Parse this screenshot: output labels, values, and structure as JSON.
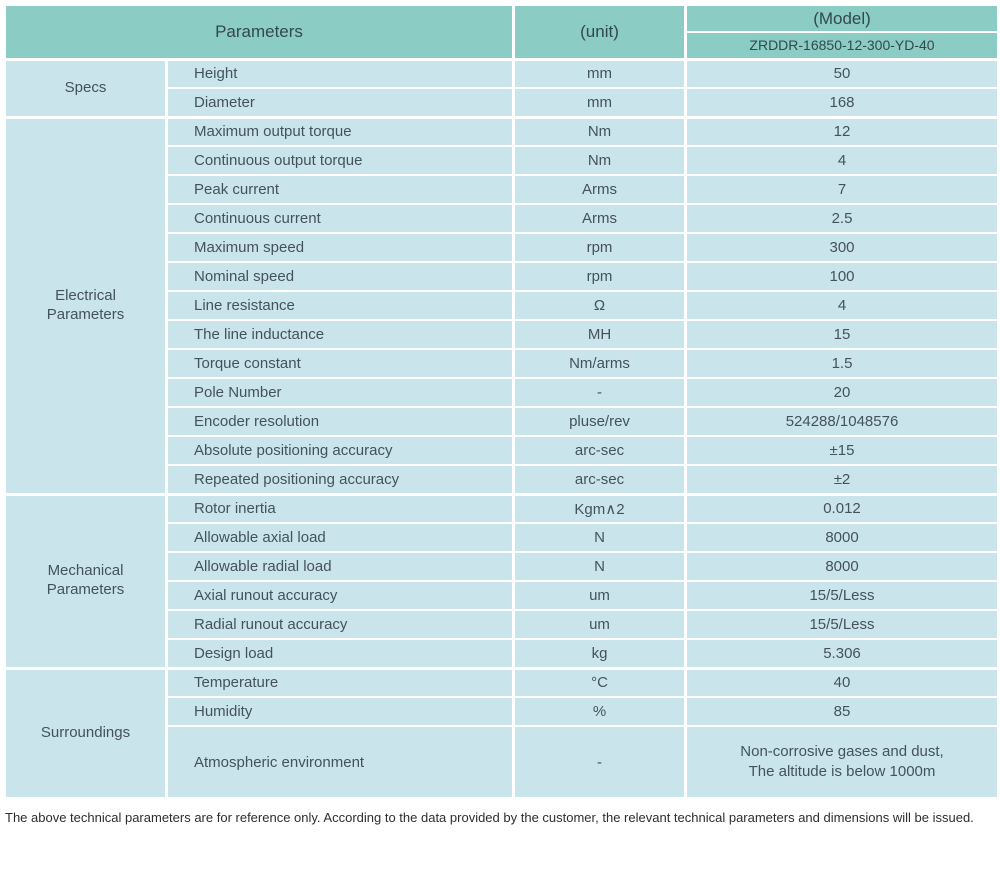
{
  "colors": {
    "header_bg": "#8bccc5",
    "body_bg": "#c9e5eb",
    "grid": "#ffffff",
    "header_text": "#33494b",
    "body_text": "#44525a",
    "note_text": "#2e2e2e"
  },
  "header": {
    "parameters_label": "Parameters",
    "unit_label": "(unit)",
    "model_label": "(Model)",
    "model_value": "ZRDDR-16850-12-300-YD-40"
  },
  "sections": [
    {
      "category": "Specs",
      "rows": [
        {
          "param": "Height",
          "unit": "mm",
          "value": "50"
        },
        {
          "param": "Diameter",
          "unit": "mm",
          "value": "168"
        }
      ]
    },
    {
      "category": "Electrical\nParameters",
      "rows": [
        {
          "param": "Maximum output torque",
          "unit": "Nm",
          "value": "12"
        },
        {
          "param": "Continuous output torque",
          "unit": "Nm",
          "value": "4"
        },
        {
          "param": "Peak current",
          "unit": "Arms",
          "value": "7"
        },
        {
          "param": "Continuous current",
          "unit": "Arms",
          "value": "2.5"
        },
        {
          "param": "Maximum speed",
          "unit": "rpm",
          "value": "300"
        },
        {
          "param": "Nominal speed",
          "unit": "rpm",
          "value": "100"
        },
        {
          "param": "Line resistance",
          "unit": "Ω",
          "value": "4"
        },
        {
          "param": "The line inductance",
          "unit": "MH",
          "value": "15"
        },
        {
          "param": "Torque constant",
          "unit": "Nm/arms",
          "value": "1.5"
        },
        {
          "param": "Pole Number",
          "unit": "-",
          "value": "20"
        },
        {
          "param": "Encoder resolution",
          "unit": "pluse/rev",
          "value": "524288/1048576"
        },
        {
          "param": "Absolute positioning accuracy",
          "unit": "arc-sec",
          "value": "±15"
        },
        {
          "param": "Repeated positioning accuracy",
          "unit": "arc-sec",
          "value": "±2"
        }
      ]
    },
    {
      "category": "Mechanical\nParameters",
      "rows": [
        {
          "param": "Rotor inertia",
          "unit": "Kgm∧2",
          "value": "0.012"
        },
        {
          "param": "Allowable axial load",
          "unit": "N",
          "value": "8000"
        },
        {
          "param": "Allowable radial load",
          "unit": "N",
          "value": "8000"
        },
        {
          "param": "Axial runout accuracy",
          "unit": "um",
          "value": "15/5/Less"
        },
        {
          "param": "Radial runout accuracy",
          "unit": "um",
          "value": "15/5/Less"
        },
        {
          "param": "Design load",
          "unit": "kg",
          "value": "5.306"
        }
      ]
    },
    {
      "category": "Surroundings",
      "rows": [
        {
          "param": "Temperature",
          "unit": "°C",
          "value": "40"
        },
        {
          "param": "Humidity",
          "unit": "%",
          "value": "85"
        },
        {
          "param": "Atmospheric environment",
          "unit": "-",
          "value": "Non-corrosive gases and dust,\nThe altitude is below 1000m"
        }
      ]
    }
  ],
  "footer": {
    "note": "The above technical parameters are for reference only. According to the data provided by the customer, the relevant technical parameters and dimensions will be issued."
  }
}
